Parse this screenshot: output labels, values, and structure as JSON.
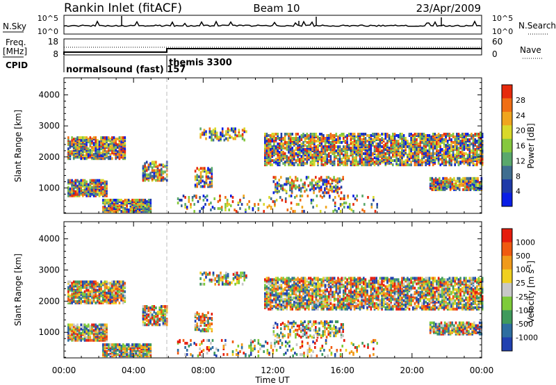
{
  "header": {
    "title": "Rankin Inlet (fitACF)",
    "beam": "Beam 10",
    "date": "23/Apr/2009"
  },
  "noise_panel": {
    "left_label": "N.Sky",
    "right_label": "N.Search",
    "left_ticks": [
      "10^5",
      "10^0"
    ],
    "right_ticks": [
      "10^5",
      "10^0"
    ]
  },
  "freq_panel": {
    "left_label_1": "Freq.",
    "left_label_2": "[MHz]",
    "right_label": "Nave",
    "left_ticks": [
      "18",
      "8"
    ],
    "right_ticks": [
      "60",
      "0"
    ]
  },
  "cpid_panel": {
    "label": "CPID",
    "modes": [
      {
        "name": "normalsound (fast) 157",
        "start_hour": 0
      },
      {
        "name": "themis 3300",
        "start_hour": 6
      }
    ]
  },
  "time_axis": {
    "label": "Time UT",
    "ticks": [
      "00:00",
      "04:00",
      "08:00",
      "12:00",
      "16:00",
      "20:00",
      "00:00"
    ]
  },
  "chart_data": [
    {
      "type": "heatmap",
      "title": "",
      "xlabel": "Time UT",
      "ylabel": "Slant Range [km]",
      "xlim_hours": [
        0,
        24
      ],
      "ylim": [
        180,
        4550
      ],
      "yticks": [
        1000,
        2000,
        3000,
        4000
      ],
      "colorbar": {
        "label": "Power [dB]",
        "range": [
          0,
          32
        ],
        "ticks": [
          "4",
          "8",
          "12",
          "16",
          "20",
          "24",
          "28"
        ],
        "colors": [
          "#0a1ee6",
          "#1f3aa8",
          "#3f6e90",
          "#5aa86c",
          "#86c83e",
          "#d9d92a",
          "#f0a51e",
          "#f06e14",
          "#e62a0c"
        ]
      }
    },
    {
      "type": "heatmap",
      "title": "",
      "xlabel": "Time UT",
      "ylabel": "Slant Range [km]",
      "xlim_hours": [
        0,
        24
      ],
      "ylim": [
        180,
        4550
      ],
      "yticks": [
        1000,
        2000,
        3000,
        4000
      ],
      "colorbar": {
        "label": "Velocity [m s^-1]",
        "ticks": [
          "1000",
          "500",
          "100",
          "25",
          "-25",
          "-100",
          "-500",
          "-1000"
        ],
        "colors": [
          "#2040b0",
          "#2e6ea0",
          "#3f9a5c",
          "#7ecb3a",
          "#c8c8c8",
          "#f0d020",
          "#f09a1a",
          "#f05a10",
          "#e61c0c"
        ]
      }
    }
  ]
}
